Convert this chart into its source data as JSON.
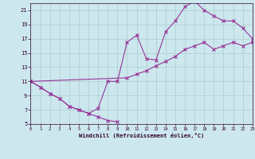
{
  "xlabel": "Windchill (Refroidissement éolien,°C)",
  "xlim": [
    0,
    23
  ],
  "ylim": [
    5,
    22
  ],
  "xticks": [
    0,
    1,
    2,
    3,
    4,
    5,
    6,
    7,
    8,
    9,
    10,
    11,
    12,
    13,
    14,
    15,
    16,
    17,
    18,
    19,
    20,
    21,
    22,
    23
  ],
  "yticks": [
    5,
    7,
    9,
    11,
    13,
    15,
    17,
    19,
    21
  ],
  "background_color": "#cce8ee",
  "grid_color": "#aacccc",
  "line_color": "#993399",
  "line1_x": [
    0,
    1,
    2,
    3,
    4,
    5,
    6,
    7,
    8,
    9
  ],
  "line1_y": [
    11,
    10.2,
    9.3,
    8.6,
    7.5,
    7.0,
    6.5,
    6.0,
    5.5,
    5.3
  ],
  "line2_x": [
    0,
    1,
    2,
    3,
    4,
    5,
    6,
    7,
    8,
    9,
    10,
    11,
    12,
    13,
    14,
    15,
    16,
    17,
    18,
    19,
    20,
    21,
    22,
    23
  ],
  "line2_y": [
    11,
    10.2,
    9.3,
    8.6,
    7.5,
    7.0,
    6.5,
    7.2,
    11.0,
    11.0,
    16.5,
    17.5,
    14.2,
    14.0,
    18.0,
    19.5,
    21.5,
    22.3,
    21.0,
    20.2,
    19.5,
    19.5,
    18.5,
    17.0
  ],
  "line3_x": [
    0,
    10,
    11,
    12,
    13,
    14,
    15,
    16,
    17,
    18,
    19,
    20,
    21,
    22,
    23
  ],
  "line3_y": [
    11,
    11.5,
    12.0,
    12.5,
    13.2,
    13.8,
    14.5,
    15.5,
    16.0,
    16.5,
    15.5,
    16.0,
    16.5,
    16.0,
    16.5
  ]
}
